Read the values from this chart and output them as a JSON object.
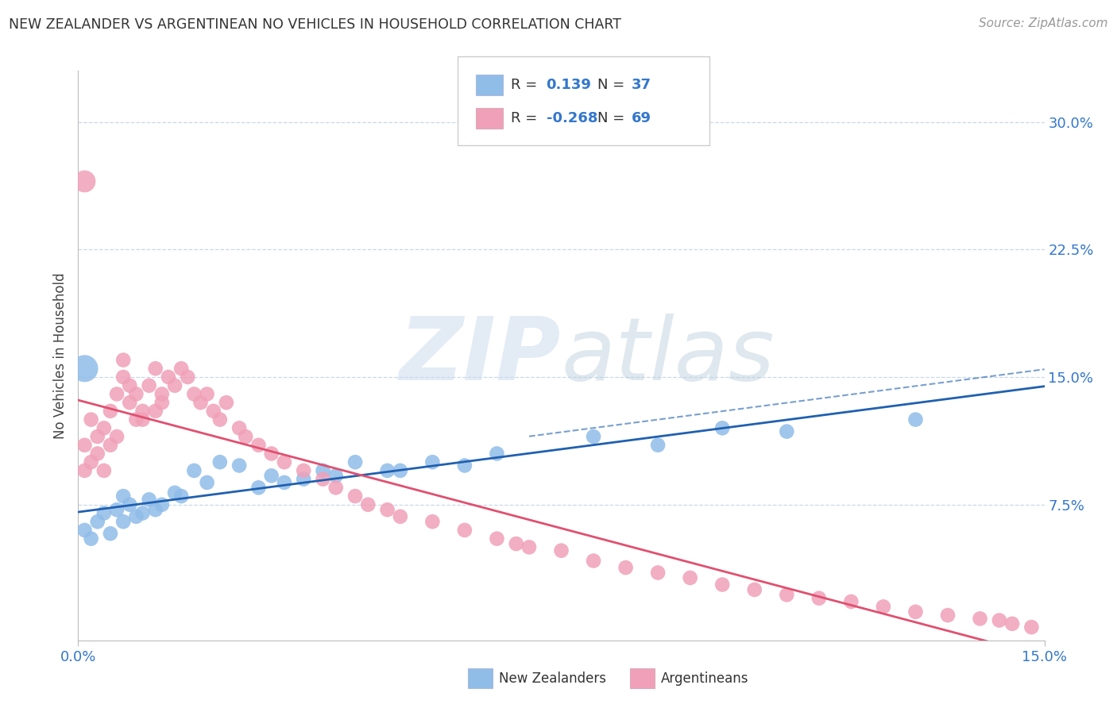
{
  "title": "NEW ZEALANDER VS ARGENTINEAN NO VEHICLES IN HOUSEHOLD CORRELATION CHART",
  "source": "Source: ZipAtlas.com",
  "ylabel": "No Vehicles in Household",
  "yticks": [
    "7.5%",
    "15.0%",
    "22.5%",
    "30.0%"
  ],
  "ytick_vals": [
    0.075,
    0.15,
    0.225,
    0.3
  ],
  "xrange": [
    0.0,
    0.15
  ],
  "yrange": [
    -0.005,
    0.33
  ],
  "nz_scatter_color": "#90bce8",
  "arg_scatter_color": "#f0a0b8",
  "nz_line_color": "#2060b0",
  "arg_line_color": "#e05070",
  "nz_R": 0.139,
  "nz_N": 37,
  "arg_R": -0.268,
  "arg_N": 69,
  "nz_points_x": [
    0.001,
    0.002,
    0.003,
    0.004,
    0.005,
    0.006,
    0.007,
    0.007,
    0.008,
    0.009,
    0.01,
    0.011,
    0.012,
    0.013,
    0.015,
    0.016,
    0.018,
    0.02,
    0.022,
    0.025,
    0.028,
    0.03,
    0.032,
    0.035,
    0.038,
    0.04,
    0.043,
    0.048,
    0.05,
    0.055,
    0.06,
    0.065,
    0.08,
    0.09,
    0.1,
    0.11,
    0.13
  ],
  "nz_points_y": [
    0.06,
    0.055,
    0.065,
    0.07,
    0.058,
    0.072,
    0.065,
    0.08,
    0.075,
    0.068,
    0.07,
    0.078,
    0.072,
    0.075,
    0.082,
    0.08,
    0.095,
    0.088,
    0.1,
    0.098,
    0.085,
    0.092,
    0.088,
    0.09,
    0.095,
    0.092,
    0.1,
    0.095,
    0.095,
    0.1,
    0.098,
    0.105,
    0.115,
    0.11,
    0.12,
    0.118,
    0.125
  ],
  "arg_points_x": [
    0.001,
    0.001,
    0.002,
    0.002,
    0.003,
    0.003,
    0.004,
    0.004,
    0.005,
    0.005,
    0.006,
    0.006,
    0.007,
    0.007,
    0.008,
    0.008,
    0.009,
    0.009,
    0.01,
    0.01,
    0.011,
    0.012,
    0.012,
    0.013,
    0.013,
    0.014,
    0.015,
    0.016,
    0.017,
    0.018,
    0.019,
    0.02,
    0.021,
    0.022,
    0.023,
    0.025,
    0.026,
    0.028,
    0.03,
    0.032,
    0.035,
    0.038,
    0.04,
    0.043,
    0.045,
    0.048,
    0.05,
    0.055,
    0.06,
    0.065,
    0.068,
    0.07,
    0.075,
    0.08,
    0.085,
    0.09,
    0.095,
    0.1,
    0.105,
    0.11,
    0.115,
    0.12,
    0.125,
    0.13,
    0.135,
    0.14,
    0.143,
    0.145,
    0.148
  ],
  "arg_points_y": [
    0.11,
    0.095,
    0.125,
    0.1,
    0.115,
    0.105,
    0.12,
    0.095,
    0.13,
    0.11,
    0.14,
    0.115,
    0.15,
    0.16,
    0.135,
    0.145,
    0.125,
    0.14,
    0.13,
    0.125,
    0.145,
    0.13,
    0.155,
    0.14,
    0.135,
    0.15,
    0.145,
    0.155,
    0.15,
    0.14,
    0.135,
    0.14,
    0.13,
    0.125,
    0.135,
    0.12,
    0.115,
    0.11,
    0.105,
    0.1,
    0.095,
    0.09,
    0.085,
    0.08,
    0.075,
    0.072,
    0.068,
    0.065,
    0.06,
    0.055,
    0.052,
    0.05,
    0.048,
    0.042,
    0.038,
    0.035,
    0.032,
    0.028,
    0.025,
    0.022,
    0.02,
    0.018,
    0.015,
    0.012,
    0.01,
    0.008,
    0.007,
    0.005,
    0.003
  ],
  "large_nz_x": [
    0.001
  ],
  "large_nz_y": [
    0.155
  ],
  "large_arg_x": [
    0.001
  ],
  "large_arg_y": [
    0.265
  ]
}
